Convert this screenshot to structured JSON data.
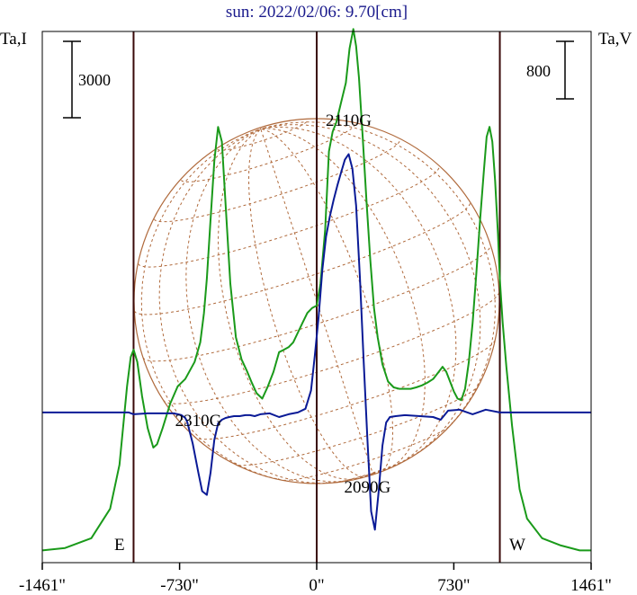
{
  "title": "sun: 2022/02/06: 9.70[cm]",
  "left_axis_label": "Ta,I",
  "right_axis_label": "Ta,V",
  "left_scale_bar": "3000",
  "right_scale_bar": "800",
  "limb_labels": {
    "east": "E",
    "west": "W"
  },
  "colors": {
    "intensity": "#1a9a1a",
    "polarization": "#0a1a96",
    "disk": "#b06a3c",
    "frame": "#000000",
    "limb_lines": "#3a0a0a",
    "title": "#1a1a8c"
  },
  "chart_data": {
    "type": "line",
    "title": "sun: 2022/02/06: 9.70[cm]",
    "xlabel": "",
    "xlim": [
      -1461,
      1461
    ],
    "x_ticks": [
      -1461,
      -730,
      0,
      730,
      1461
    ],
    "x_tick_labels": [
      "-1461\"",
      "-730\"",
      "0\"",
      "730\"",
      "1461\""
    ],
    "limb_positions": [
      -975,
      975
    ],
    "grid": false,
    "annotations": [
      {
        "text": "2110G",
        "x": 170
      },
      {
        "text": "2310G",
        "x": -630
      },
      {
        "text": "2090G",
        "x": 270
      }
    ],
    "series": [
      {
        "name": "Ta,I",
        "axis": "left",
        "ylim": [
          -3200,
          7650
        ],
        "x": [
          -1461,
          -1340,
          -1200,
          -1100,
          -1050,
          -1010,
          -990,
          -975,
          -955,
          -930,
          -900,
          -870,
          -850,
          -820,
          -780,
          -740,
          -700,
          -650,
          -620,
          -600,
          -585,
          -565,
          -545,
          -525,
          -505,
          -485,
          -460,
          -430,
          -400,
          -370,
          -345,
          -320,
          -290,
          -260,
          -230,
          -200,
          -175,
          -150,
          -125,
          -100,
          -75,
          -50,
          -25,
          0,
          20,
          45,
          65,
          85,
          105,
          130,
          155,
          175,
          195,
          210,
          225,
          245,
          265,
          285,
          305,
          325,
          350,
          380,
          410,
          440,
          470,
          500,
          530,
          560,
          590,
          620,
          650,
          670,
          690,
          710,
          730,
          750,
          770,
          790,
          810,
          830,
          850,
          870,
          890,
          905,
          920,
          935,
          950,
          965,
          975,
          990,
          1010,
          1040,
          1080,
          1120,
          1200,
          1300,
          1400,
          1461
        ],
        "y": [
          -2950,
          -2900,
          -2700,
          -2100,
          -1200,
          400,
          1000,
          1150,
          900,
          200,
          -450,
          -850,
          -780,
          -450,
          50,
          400,
          550,
          900,
          1300,
          1900,
          2600,
          3800,
          5000,
          5700,
          5400,
          4100,
          2500,
          1400,
          950,
          700,
          470,
          260,
          150,
          400,
          700,
          1100,
          1150,
          1200,
          1300,
          1500,
          1700,
          1900,
          2000,
          2050,
          2500,
          3600,
          5200,
          5600,
          5800,
          6200,
          6600,
          7300,
          7700,
          7350,
          6700,
          5500,
          4200,
          3000,
          2000,
          1400,
          850,
          500,
          380,
          350,
          350,
          350,
          380,
          420,
          480,
          550,
          700,
          800,
          700,
          500,
          300,
          150,
          120,
          350,
          900,
          1700,
          2700,
          3800,
          4800,
          5500,
          5700,
          5400,
          4600,
          3500,
          2600,
          1700,
          800,
          -400,
          -1700,
          -2300,
          -2700,
          -2850,
          -2950,
          -2950
        ]
      },
      {
        "name": "Ta,V",
        "axis": "right",
        "ylim": [
          -820,
          2080
        ],
        "x": [
          -1461,
          -1000,
          -975,
          -900,
          -760,
          -720,
          -700,
          -690,
          -660,
          -630,
          -610,
          -585,
          -565,
          -545,
          -525,
          -505,
          -485,
          -465,
          -440,
          -410,
          -380,
          -355,
          -330,
          -300,
          -250,
          -200,
          -150,
          -100,
          -60,
          -30,
          -10,
          10,
          30,
          50,
          70,
          90,
          110,
          130,
          150,
          170,
          190,
          210,
          230,
          250,
          270,
          290,
          310,
          330,
          350,
          370,
          390,
          420,
          470,
          550,
          620,
          660,
          700,
          760,
          830,
          900,
          975,
          1461
        ],
        "y": [
          0,
          0,
          -10,
          -5,
          -5,
          -15,
          -30,
          -50,
          -170,
          -330,
          -430,
          -450,
          -330,
          -150,
          -60,
          -40,
          -30,
          -25,
          -20,
          -20,
          -15,
          -15,
          -20,
          -10,
          -5,
          -25,
          -10,
          0,
          20,
          120,
          310,
          520,
          780,
          960,
          1070,
          1160,
          1240,
          1310,
          1380,
          1410,
          1330,
          1130,
          740,
          280,
          -150,
          -540,
          -640,
          -430,
          -180,
          -55,
          -25,
          -20,
          -15,
          -20,
          -25,
          -40,
          10,
          15,
          -10,
          15,
          0,
          0
        ]
      }
    ]
  }
}
